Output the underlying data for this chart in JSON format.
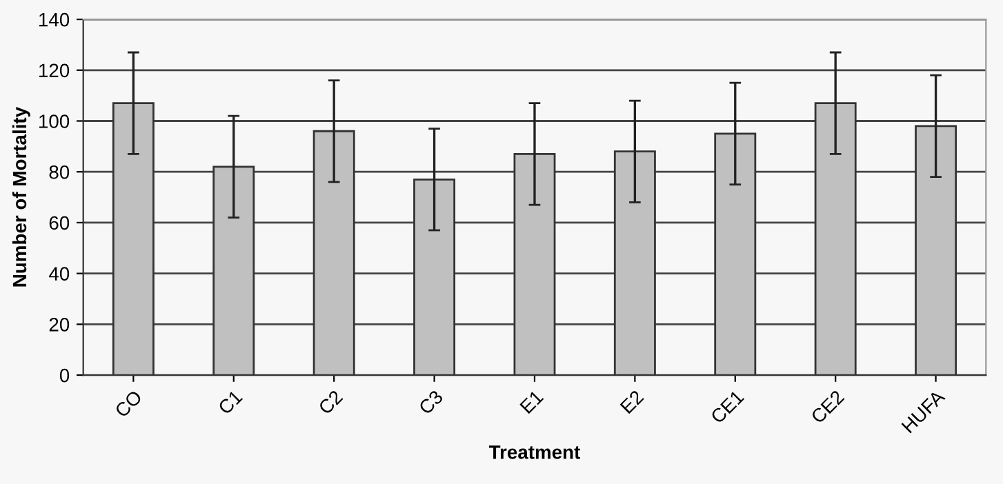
{
  "chart_data": {
    "type": "bar",
    "xlabel": "Treatment",
    "ylabel": "Number of Mortality",
    "categories": [
      "CO",
      "C1",
      "C2",
      "C3",
      "E1",
      "E2",
      "CE1",
      "CE2",
      "HUFA"
    ],
    "values": [
      107,
      82,
      96,
      77,
      87,
      88,
      95,
      107,
      98
    ],
    "errors": [
      20,
      20,
      20,
      20,
      20,
      20,
      20,
      20,
      20
    ],
    "color": "#c0c0c0",
    "ylim": [
      0,
      140
    ],
    "yticks": [
      0,
      20,
      40,
      60,
      80,
      100,
      120,
      140
    ],
    "grid": "y"
  }
}
